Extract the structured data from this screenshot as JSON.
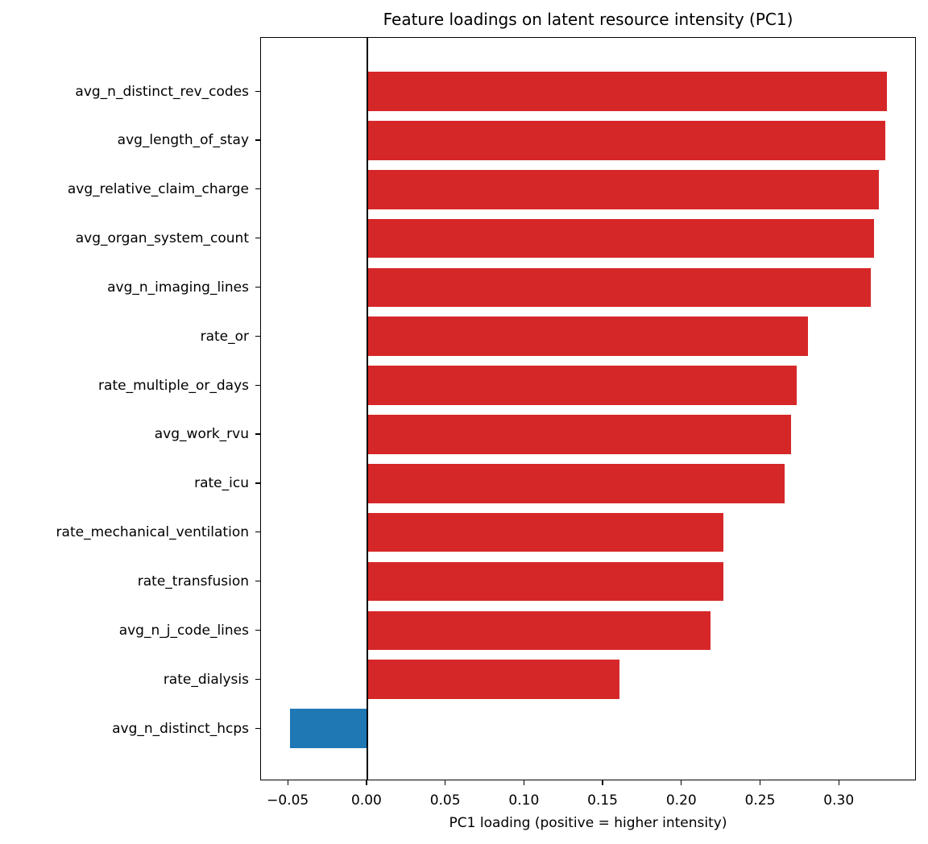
{
  "chart_data": {
    "type": "bar",
    "orientation": "horizontal",
    "title": "Feature loadings on latent resource intensity (PC1)",
    "xlabel": "PC1 loading (positive = higher intensity)",
    "ylabel": "",
    "xlim": [
      -0.0675,
      0.349
    ],
    "xticks": [
      -0.05,
      0.0,
      0.05,
      0.1,
      0.15,
      0.2,
      0.25,
      0.3
    ],
    "xtick_labels": [
      "−0.05",
      "0.00",
      "0.05",
      "0.10",
      "0.15",
      "0.20",
      "0.25",
      "0.30"
    ],
    "grid": false,
    "legend": null,
    "colors": {
      "positive": "#d62728",
      "negative": "#1f77b4",
      "zero_line": "#000000"
    },
    "categories": [
      "avg_n_distinct_rev_codes",
      "avg_length_of_stay",
      "avg_relative_claim_charge",
      "avg_organ_system_count",
      "avg_n_imaging_lines",
      "rate_or",
      "rate_multiple_or_days",
      "avg_work_rvu",
      "rate_icu",
      "rate_mechanical_ventilation",
      "rate_transfusion",
      "avg_n_j_code_lines",
      "rate_dialysis",
      "avg_n_distinct_hcps"
    ],
    "values": [
      0.33,
      0.329,
      0.325,
      0.322,
      0.32,
      0.28,
      0.273,
      0.269,
      0.265,
      0.226,
      0.226,
      0.218,
      0.16,
      -0.049
    ]
  }
}
